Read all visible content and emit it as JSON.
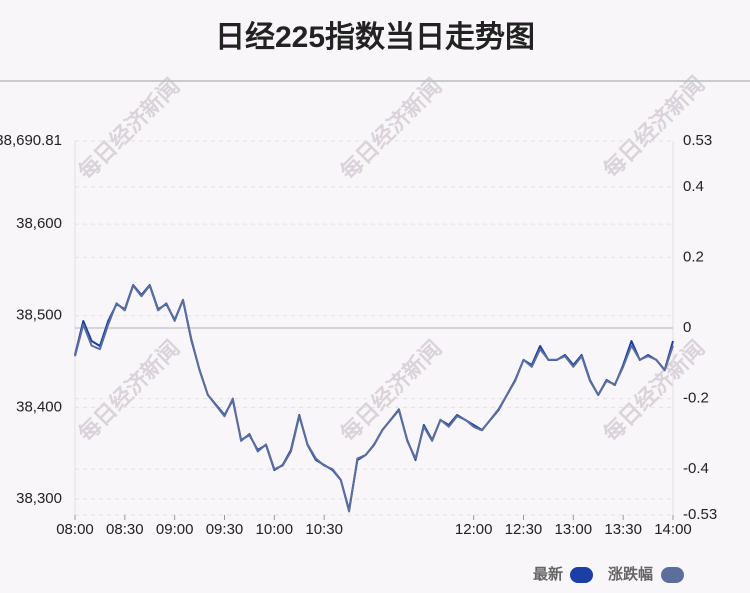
{
  "chart_data": {
    "type": "line",
    "title": "日经225指数当日走势图",
    "watermark": "每日经济新闻",
    "x": [
      "08:00",
      "08:05",
      "08:10",
      "08:15",
      "08:20",
      "08:25",
      "08:30",
      "08:35",
      "08:40",
      "08:45",
      "08:50",
      "08:55",
      "09:00",
      "09:05",
      "09:10",
      "09:15",
      "09:20",
      "09:25",
      "09:30",
      "09:35",
      "09:40",
      "09:45",
      "09:50",
      "09:55",
      "10:00",
      "10:05",
      "10:10",
      "10:15",
      "10:20",
      "10:25",
      "10:30",
      "10:35",
      "10:40",
      "10:45",
      "10:50",
      "10:55",
      "11:00",
      "11:05",
      "11:10",
      "11:15",
      "11:20",
      "11:25",
      "11:30",
      "11:35",
      "11:40",
      "11:45",
      "11:50",
      "11:55",
      "12:00",
      "12:05",
      "12:10",
      "12:15",
      "12:20",
      "12:25",
      "12:30",
      "12:35",
      "12:40",
      "12:45",
      "12:50",
      "12:55",
      "13:00",
      "13:05",
      "13:10",
      "13:15",
      "13:20",
      "13:25",
      "13:30",
      "13:35",
      "13:40",
      "13:45",
      "13:50",
      "13:55",
      "14:00"
    ],
    "series": [
      {
        "name": "最新",
        "color": "#1a3fa6",
        "axis": "y",
        "values": [
          38457.2,
          38494.3,
          38472.5,
          38467.0,
          38494.3,
          38512.7,
          38507.2,
          38533.6,
          38522.7,
          38533.6,
          38507.2,
          38512.7,
          38495.4,
          38517.2,
          38473.6,
          38440.8,
          38413.5,
          38402.6,
          38391.7,
          38408.0,
          38364.4,
          38369.8,
          38353.5,
          38358.9,
          38331.6,
          38337.1,
          38353.5,
          38391.7,
          38358.9,
          38342.5,
          38337.1,
          38331.6,
          38320.7,
          38288.0,
          38342.5,
          38348.0,
          38358.9,
          38375.3,
          38386.2,
          38397.1,
          38364.4,
          38342.5,
          38380.8,
          38364.4,
          38386.2,
          38380.8,
          38391.7,
          38386.2,
          38380.8,
          38375.3,
          38386.2,
          38397.1,
          38413.5,
          38429.9,
          38451.7,
          38446.3,
          38467.0,
          38451.7,
          38451.7,
          38457.2,
          38446.3,
          38457.2,
          38429.9,
          38413.5,
          38429.9,
          38424.4,
          38446.3,
          38472.5,
          38451.7,
          38457.2,
          38451.7,
          38440.8,
          38472.5
        ]
      },
      {
        "name": "涨跌幅",
        "color": "#5b6e9c",
        "axis": "y2",
        "values": [
          -0.08,
          0.01,
          -0.05,
          -0.06,
          0.01,
          0.07,
          0.05,
          0.12,
          0.09,
          0.12,
          0.05,
          0.07,
          0.02,
          0.08,
          -0.03,
          -0.12,
          -0.19,
          -0.22,
          -0.25,
          -0.2,
          -0.32,
          -0.3,
          -0.35,
          -0.33,
          -0.4,
          -0.39,
          -0.35,
          -0.25,
          -0.33,
          -0.37,
          -0.39,
          -0.4,
          -0.43,
          -0.52,
          -0.37,
          -0.36,
          -0.33,
          -0.29,
          -0.26,
          -0.23,
          -0.32,
          -0.37,
          -0.28,
          -0.32,
          -0.26,
          -0.28,
          -0.25,
          -0.26,
          -0.28,
          -0.29,
          -0.26,
          -0.23,
          -0.19,
          -0.15,
          -0.09,
          -0.11,
          -0.06,
          -0.09,
          -0.09,
          -0.08,
          -0.11,
          -0.08,
          -0.15,
          -0.19,
          -0.15,
          -0.16,
          -0.11,
          -0.05,
          -0.09,
          -0.08,
          -0.09,
          -0.12,
          -0.05
        ]
      }
    ],
    "xlim": [
      "08:00",
      "14:00"
    ],
    "xticks": [
      "08:00",
      "08:30",
      "09:00",
      "09:30",
      "10:00",
      "10:30",
      "12:00",
      "12:30",
      "13:00",
      "13:30",
      "14:00"
    ],
    "ylim": [
      38282.5,
      38690.81
    ],
    "yticks": [
      {
        "value": 38690.81,
        "label": "38,690.81"
      },
      {
        "value": 38600,
        "label": "38,600"
      },
      {
        "value": 38500,
        "label": "38,500"
      },
      {
        "value": 38400,
        "label": "38,400"
      },
      {
        "value": 38300,
        "label": "38,300"
      }
    ],
    "y2lim": [
      -0.53,
      0.53
    ],
    "y2ticks": [
      0.53,
      0.4,
      0.2,
      0,
      -0.2,
      -0.4,
      -0.53
    ],
    "grid": true
  }
}
